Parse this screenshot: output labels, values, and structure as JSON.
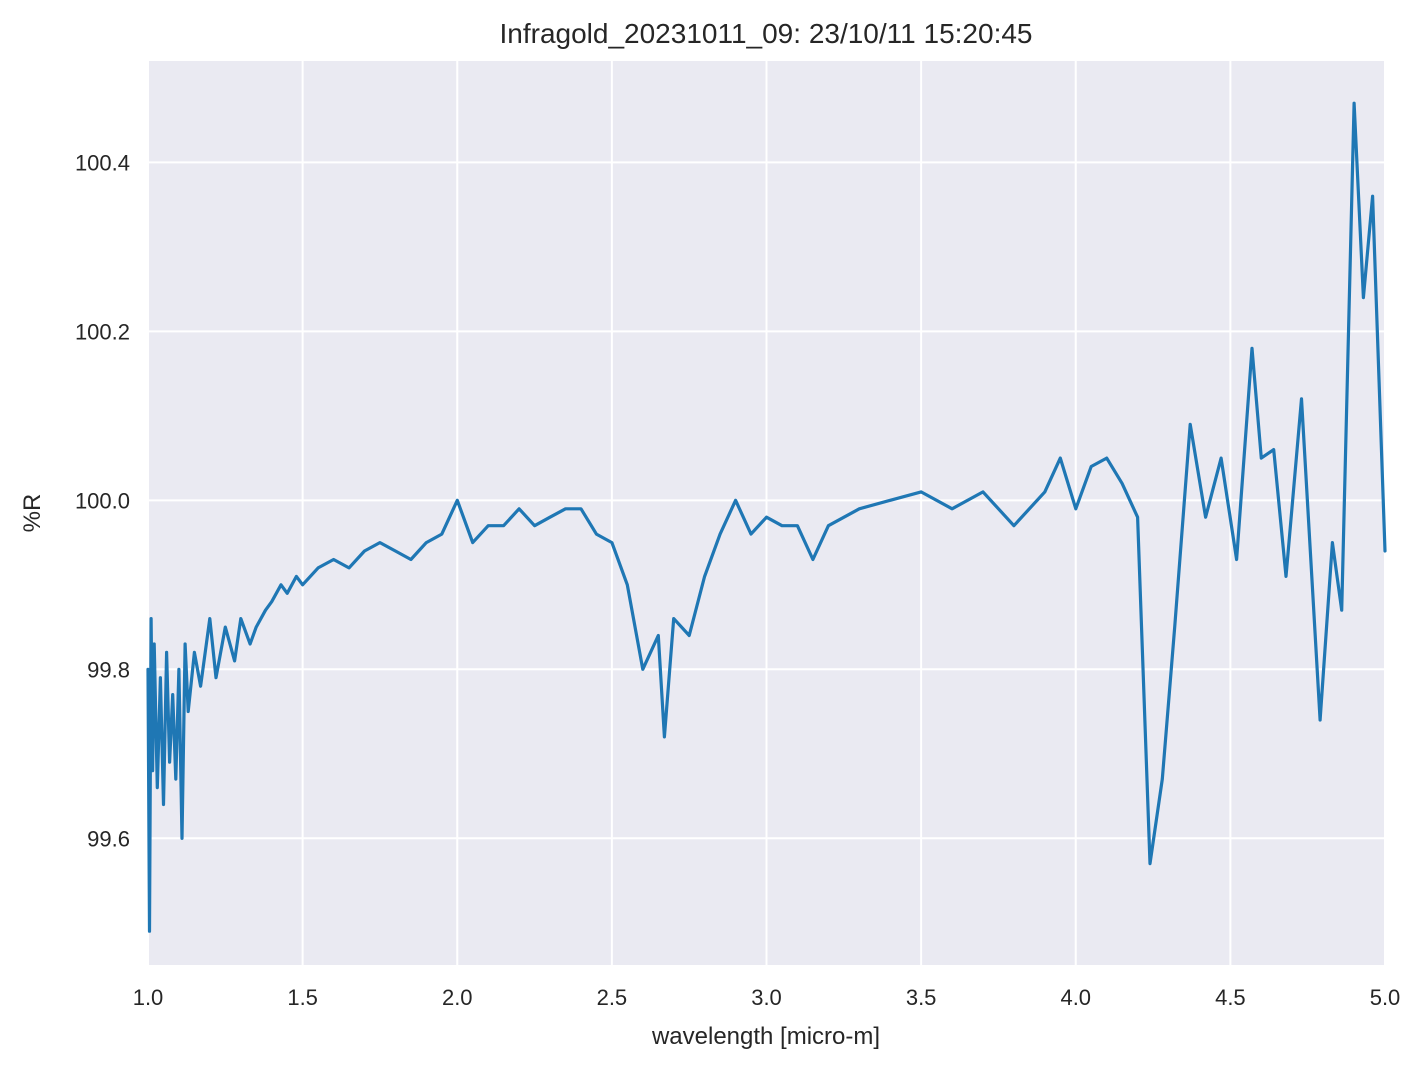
{
  "chart_data": {
    "type": "line",
    "title": "Infragold_20231011_09:  23/10/11 15:20:45",
    "xlabel": "wavelength [micro-m]",
    "ylabel": "%R",
    "xlim": [
      1.0,
      5.0
    ],
    "ylim": [
      99.45,
      100.52
    ],
    "xticks": [
      1.0,
      1.5,
      2.0,
      2.5,
      3.0,
      3.5,
      4.0,
      4.5,
      5.0
    ],
    "xtick_labels": [
      "1.0",
      "1.5",
      "2.0",
      "2.5",
      "3.0",
      "3.5",
      "4.0",
      "4.5",
      "5.0"
    ],
    "yticks": [
      99.6,
      99.8,
      100.0,
      100.2,
      100.4
    ],
    "ytick_labels": [
      "99.6",
      "99.8",
      "100.0",
      "100.2",
      "100.4"
    ],
    "grid": true,
    "colors": {
      "plot_background": "#eaeaf2",
      "grid": "#ffffff",
      "line": "#1f77b4",
      "text": "#262626"
    },
    "series": [
      {
        "x": [
          1.0,
          1.005,
          1.01,
          1.015,
          1.02,
          1.03,
          1.04,
          1.05,
          1.06,
          1.07,
          1.08,
          1.09,
          1.1,
          1.11,
          1.12,
          1.13,
          1.15,
          1.17,
          1.2,
          1.22,
          1.25,
          1.28,
          1.3,
          1.33,
          1.35,
          1.38,
          1.4,
          1.43,
          1.45,
          1.48,
          1.5,
          1.55,
          1.6,
          1.65,
          1.7,
          1.75,
          1.8,
          1.85,
          1.9,
          1.95,
          2.0,
          2.05,
          2.1,
          2.15,
          2.2,
          2.25,
          2.3,
          2.35,
          2.4,
          2.45,
          2.5,
          2.55,
          2.6,
          2.65,
          2.67,
          2.7,
          2.75,
          2.8,
          2.85,
          2.9,
          2.95,
          3.0,
          3.05,
          3.1,
          3.15,
          3.2,
          3.3,
          3.4,
          3.5,
          3.6,
          3.7,
          3.8,
          3.9,
          3.95,
          4.0,
          4.05,
          4.1,
          4.15,
          4.2,
          4.24,
          4.28,
          4.32,
          4.37,
          4.42,
          4.47,
          4.52,
          4.57,
          4.6,
          4.64,
          4.68,
          4.73,
          4.79,
          4.83,
          4.86,
          4.9,
          4.93,
          4.96,
          5.0
        ],
        "y": [
          99.8,
          99.49,
          99.86,
          99.68,
          99.83,
          99.66,
          99.79,
          99.64,
          99.82,
          99.69,
          99.77,
          99.67,
          99.8,
          99.6,
          99.83,
          99.75,
          99.82,
          99.78,
          99.86,
          99.79,
          99.85,
          99.81,
          99.86,
          99.83,
          99.85,
          99.87,
          99.88,
          99.9,
          99.89,
          99.91,
          99.9,
          99.92,
          99.93,
          99.92,
          99.94,
          99.95,
          99.94,
          99.93,
          99.95,
          99.96,
          100.0,
          99.95,
          99.97,
          99.97,
          99.99,
          99.97,
          99.98,
          99.99,
          99.99,
          99.96,
          99.95,
          99.9,
          99.8,
          99.84,
          99.72,
          99.86,
          99.84,
          99.91,
          99.96,
          100.0,
          99.96,
          99.98,
          99.97,
          99.97,
          99.93,
          99.97,
          99.99,
          100.0,
          100.01,
          99.99,
          100.01,
          99.97,
          100.01,
          100.05,
          99.99,
          100.04,
          100.05,
          100.02,
          99.98,
          99.57,
          99.67,
          99.85,
          100.09,
          99.98,
          100.05,
          99.93,
          100.18,
          100.05,
          100.06,
          99.91,
          100.12,
          99.74,
          99.95,
          99.87,
          100.47,
          100.24,
          100.36,
          99.94
        ]
      }
    ]
  }
}
